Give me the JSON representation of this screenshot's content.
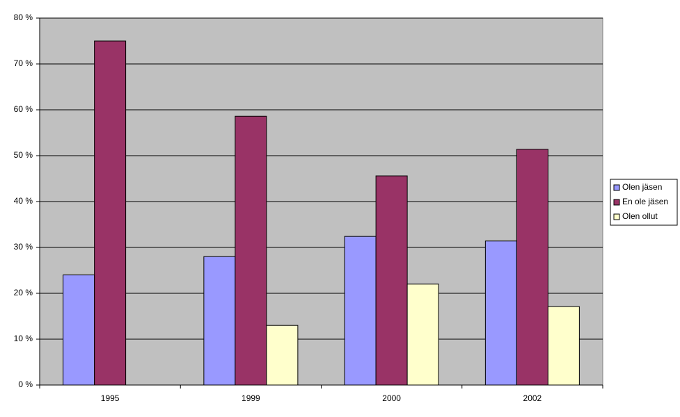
{
  "chart_data": {
    "type": "bar",
    "categories": [
      "1995",
      "1999",
      "2000",
      "2002"
    ],
    "series": [
      {
        "name": "Olen jäsen",
        "color": "#9999ff",
        "values": [
          24,
          28,
          32.4,
          31.4
        ]
      },
      {
        "name": "En ole jäsen",
        "color": "#993366",
        "values": [
          75,
          58.6,
          45.6,
          51.4
        ]
      },
      {
        "name": "Olen ollut",
        "color": "#ffffcc",
        "values": [
          null,
          13,
          22,
          17.1
        ]
      }
    ],
    "ylim": [
      0,
      80
    ],
    "yticks": [
      {
        "value": 0,
        "label": "0 %"
      },
      {
        "value": 10,
        "label": "10 %"
      },
      {
        "value": 20,
        "label": "20 %"
      },
      {
        "value": 30,
        "label": "30 %"
      },
      {
        "value": 40,
        "label": "40 %"
      },
      {
        "value": 50,
        "label": "50 %"
      },
      {
        "value": 60,
        "label": "60 %"
      },
      {
        "value": 70,
        "label": "70 %"
      },
      {
        "value": 80,
        "label": "80 %"
      }
    ],
    "grid": true,
    "legend": "right"
  }
}
